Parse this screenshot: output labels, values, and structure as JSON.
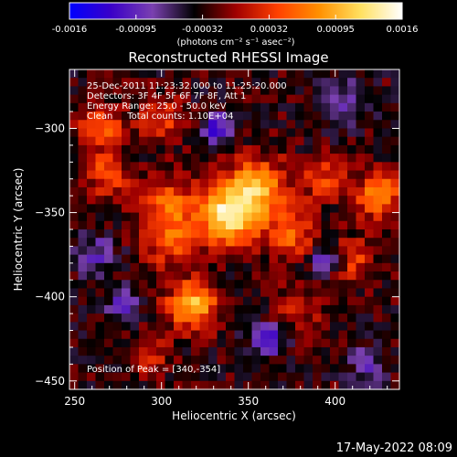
{
  "colorbar": {
    "tick_labels": [
      "-0.0016",
      "-0.00095",
      "-0.00032",
      "0.00032",
      "0.00095",
      "0.0016"
    ],
    "unit_label": "(photons cm⁻² s⁻¹ asec⁻²)",
    "colors": [
      "#0000ff",
      "#3a00c8",
      "#7a40b0",
      "#000000",
      "#a00000",
      "#ff4000",
      "#ff9000",
      "#ffe060",
      "#ffffff"
    ]
  },
  "info": {
    "line1": "25-Dec-2011 11:23:32.000 to 11:25:20.000",
    "line2": "Detectors: 3F 4F 5F 6F 7F 8F, Att 1",
    "line3": "Energy Range: 25.0 - 50.0 keV",
    "line4": "Clean     Total counts: 1.10E+04",
    "peak": "Position of Peak = [340,-354]"
  },
  "footer": {
    "timestamp": "17-May-2022 08:09"
  },
  "chart_data": {
    "type": "heatmap",
    "title": "Reconstructed RHESSI Image",
    "xlabel": "Heliocentric X (arcsec)",
    "ylabel": "Heliocentric Y (arcsec)",
    "xlim": [
      247,
      437
    ],
    "ylim": [
      -455,
      -265
    ],
    "xticks": [
      250,
      300,
      350,
      400
    ],
    "yticks": [
      -300,
      -350,
      -400,
      -450
    ],
    "value_range": [
      -0.0016,
      0.0016
    ],
    "peak": {
      "x": 340,
      "y": -354
    },
    "sources": [
      {
        "x": 338,
        "y": -352,
        "amp": 0.0016,
        "sigma": 12
      },
      {
        "x": 355,
        "y": -335,
        "amp": 0.0012,
        "sigma": 12
      },
      {
        "x": 318,
        "y": -405,
        "amp": 0.0013,
        "sigma": 10
      },
      {
        "x": 303,
        "y": -345,
        "amp": 0.0008,
        "sigma": 12
      },
      {
        "x": 425,
        "y": -340,
        "amp": 0.0011,
        "sigma": 9
      },
      {
        "x": 375,
        "y": -362,
        "amp": 0.0008,
        "sigma": 10
      },
      {
        "x": 268,
        "y": -327,
        "amp": 0.0007,
        "sigma": 9
      },
      {
        "x": 265,
        "y": -298,
        "amp": 0.0008,
        "sigma": 9
      },
      {
        "x": 305,
        "y": -368,
        "amp": 0.0007,
        "sigma": 10
      },
      {
        "x": 410,
        "y": -378,
        "amp": 0.0006,
        "sigma": 9
      },
      {
        "x": 292,
        "y": -435,
        "amp": 0.0006,
        "sigma": 8
      },
      {
        "x": 300,
        "y": -295,
        "amp": 0.0006,
        "sigma": 9
      },
      {
        "x": 378,
        "y": -408,
        "amp": 0.0005,
        "sigma": 9
      },
      {
        "x": 393,
        "y": -330,
        "amp": 0.0006,
        "sigma": 9
      },
      {
        "x": 332,
        "y": -300,
        "amp": -0.001,
        "sigma": 6
      },
      {
        "x": 395,
        "y": -378,
        "amp": -0.0008,
        "sigma": 6
      },
      {
        "x": 278,
        "y": -405,
        "amp": -0.0008,
        "sigma": 6
      },
      {
        "x": 362,
        "y": -425,
        "amp": -0.0008,
        "sigma": 7
      },
      {
        "x": 262,
        "y": -375,
        "amp": -0.0006,
        "sigma": 8
      },
      {
        "x": 405,
        "y": -285,
        "amp": -0.0006,
        "sigma": 9
      },
      {
        "x": 420,
        "y": -440,
        "amp": -0.0005,
        "sigma": 8
      }
    ],
    "background": -0.0003
  }
}
